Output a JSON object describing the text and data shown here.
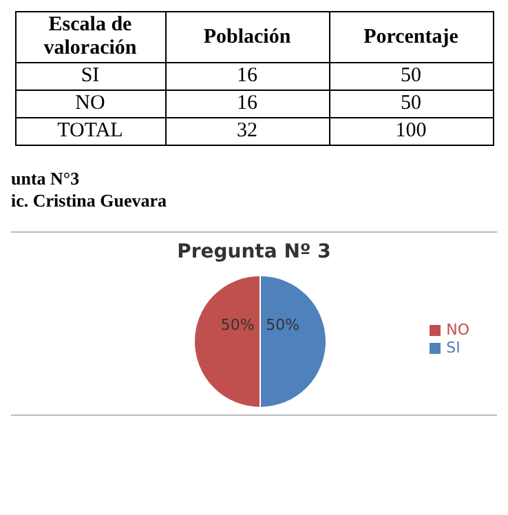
{
  "chart_data": {
    "type": "pie",
    "title": "Pregunta Nº 3",
    "categories": [
      "SI",
      "NO"
    ],
    "values": [
      50,
      50
    ],
    "colors": [
      "#4f81bd",
      "#c0504d"
    ],
    "value_labels": [
      "50%",
      "50%"
    ],
    "legend": "right",
    "annotations": [
      "Escala de valoración",
      "Población",
      "Porcentaje",
      "SI",
      "16",
      "50",
      "NO",
      "16",
      "50",
      "TOTAL",
      "32",
      "100",
      "unta N°3",
      "ic. Cristina Guevara"
    ]
  }
}
